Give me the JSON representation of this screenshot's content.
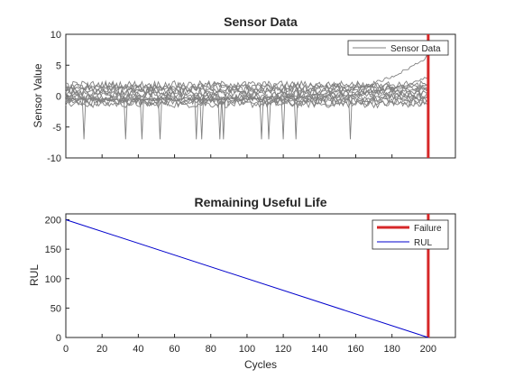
{
  "chart_data": [
    {
      "type": "line",
      "title": "Sensor Data",
      "xlabel": "",
      "ylabel": "Sensor Value",
      "xlim": [
        0,
        215
      ],
      "ylim": [
        -10,
        10
      ],
      "yticks": [
        "10",
        "5",
        "0",
        "-5",
        "-10"
      ],
      "ytick_values": [
        10,
        5,
        0,
        -5,
        -10
      ],
      "xtick_values": [
        0,
        20,
        40,
        60,
        80,
        100,
        120,
        140,
        160,
        180,
        200
      ],
      "show_xtick_labels": false,
      "grid": false,
      "legend": {
        "placement": "top-right",
        "entries": [
          "Sensor Data"
        ]
      },
      "failure_x": 200,
      "series_summary": {
        "count": 14,
        "x_range": [
          0,
          200
        ],
        "baseline_range": [
          -2,
          2
        ],
        "spike_value": -7,
        "spike_cycles": [
          10,
          33,
          42,
          52,
          72,
          75,
          85,
          87,
          108,
          112,
          120,
          127,
          157
        ],
        "drift_series_end_value": 6.5
      },
      "colors": {
        "series": "#808080",
        "failure": "#d62728"
      }
    },
    {
      "type": "line",
      "title": "Remaining Useful Life",
      "xlabel": "Cycles",
      "ylabel": "RUL",
      "xlim": [
        0,
        215
      ],
      "ylim": [
        0,
        210
      ],
      "xticks": [
        "0",
        "20",
        "40",
        "60",
        "80",
        "100",
        "120",
        "140",
        "160",
        "180",
        "200"
      ],
      "xtick_values": [
        0,
        20,
        40,
        60,
        80,
        100,
        120,
        140,
        160,
        180,
        200
      ],
      "yticks": [
        "200",
        "150",
        "100",
        "50",
        "0"
      ],
      "ytick_values": [
        200,
        150,
        100,
        50,
        0
      ],
      "grid": false,
      "legend": {
        "placement": "top-right",
        "entries": [
          "Failure",
          "RUL"
        ]
      },
      "series": [
        {
          "name": "Failure",
          "x": [
            200,
            200
          ],
          "y": [
            0,
            210
          ],
          "color": "#d62728"
        },
        {
          "name": "RUL",
          "x": [
            0,
            200
          ],
          "y": [
            200,
            0
          ],
          "color": "#0000cc"
        }
      ]
    }
  ]
}
